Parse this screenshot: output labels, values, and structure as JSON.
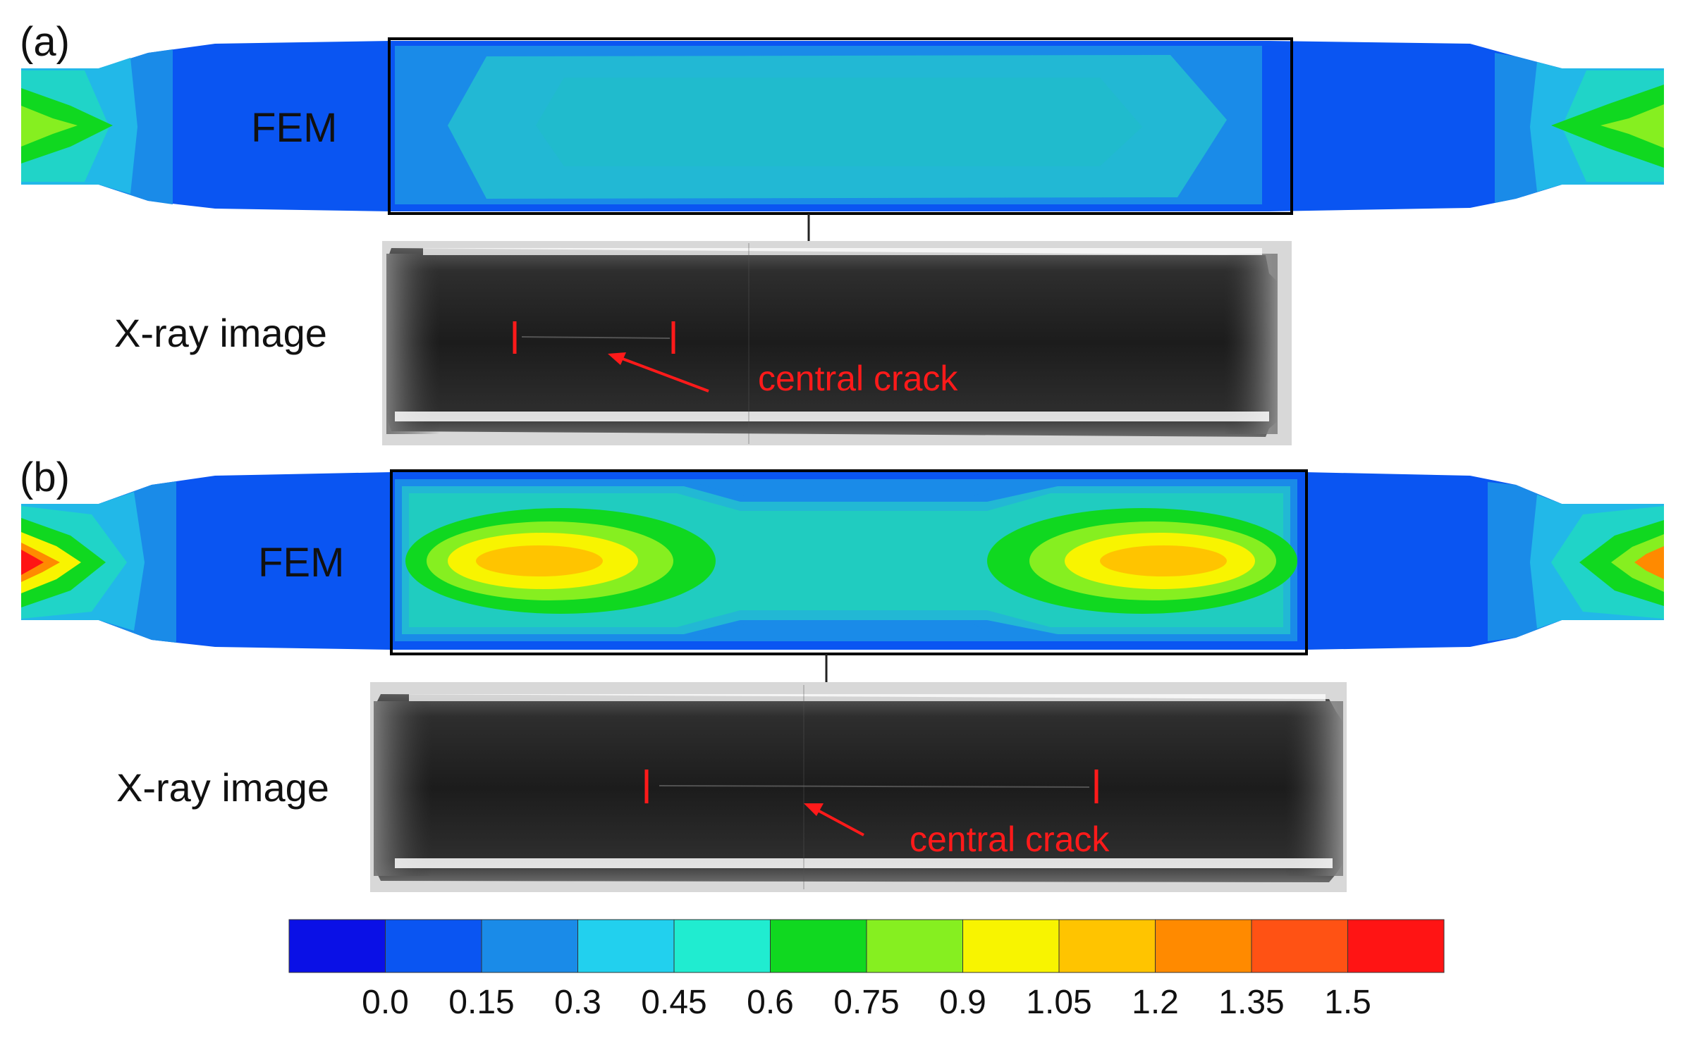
{
  "panels": [
    {
      "id": "a",
      "label": "(a)",
      "fem_label": "FEM",
      "xray_label": "X-ray image",
      "crack_label": "central crack"
    },
    {
      "id": "b",
      "label": "(b)",
      "fem_label": "FEM",
      "xray_label": "X-ray image",
      "crack_label": "central crack"
    }
  ],
  "legend": {
    "colors": [
      "#0a10e6",
      "#0a55f2",
      "#1a8be8",
      "#22d0ee",
      "#20ecd0",
      "#10d820",
      "#86ef20",
      "#f8f400",
      "#ffc400",
      "#ff8a00",
      "#ff5214",
      "#ff1414"
    ],
    "ticks": [
      "0.0",
      "0.15",
      "0.3",
      "0.45",
      "0.6",
      "0.75",
      "0.9",
      "1.05",
      "1.2",
      "1.35",
      "1.5"
    ]
  },
  "colors": {
    "annotation_red": "#ff1a1a",
    "frame": "#000000"
  }
}
